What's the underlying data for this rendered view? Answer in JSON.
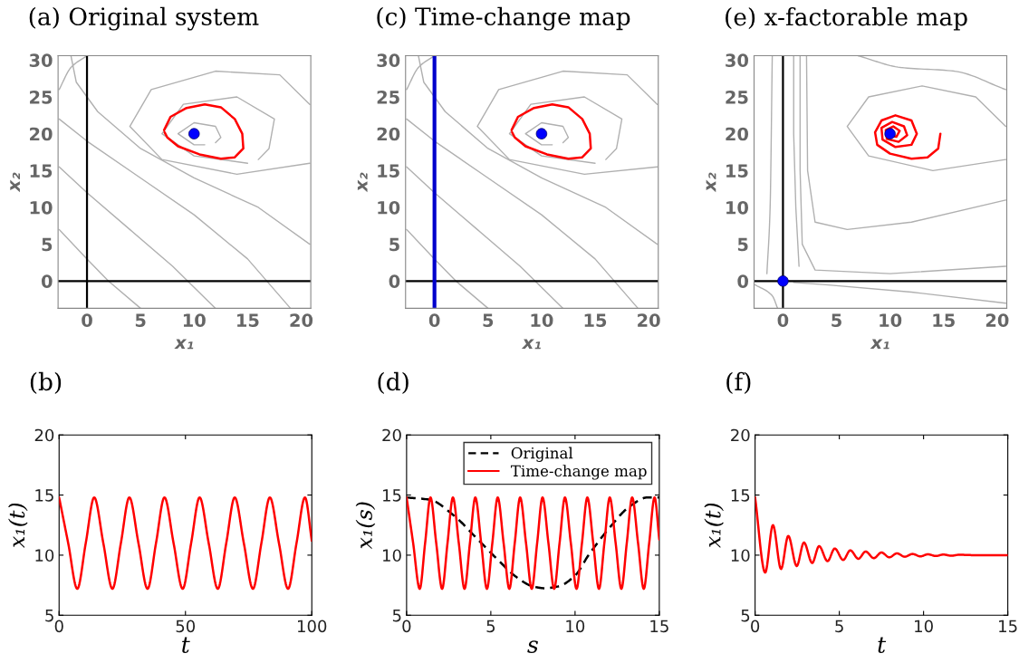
{
  "chart_data": [
    {
      "type": "line",
      "title": "(a) Original system",
      "xlabel": "x₁",
      "ylabel": "x₂",
      "xlim": [
        -2.7,
        20.9
      ],
      "ylim": [
        -3.7,
        30.6
      ],
      "xticks": [
        0,
        5,
        10,
        15,
        20
      ],
      "yticks": [
        0,
        5,
        10,
        15,
        20,
        25,
        30
      ],
      "ref_lines": [
        {
          "axis": "x",
          "value": 0,
          "color": "#000000"
        },
        {
          "axis": "y",
          "value": 0,
          "color": "#000000"
        }
      ],
      "series": [
        {
          "color": "#b0b0b0",
          "x": [
            5,
            2,
            0,
            -2.6
          ],
          "values": [
            -3.7,
            0,
            3,
            7
          ]
        },
        {
          "color": "#b0b0b0",
          "x": [
            12,
            8,
            4,
            0,
            -2.6
          ],
          "values": [
            -3.7,
            2,
            7,
            12,
            15.5
          ]
        },
        {
          "color": "#b0b0b0",
          "x": [
            19,
            15,
            10,
            5,
            0,
            -2.6
          ],
          "values": [
            -3.7,
            3,
            9,
            14,
            19,
            22
          ]
        },
        {
          "color": "#b0b0b0",
          "x": [
            20.8,
            16,
            10,
            5,
            1,
            -1,
            -1.5
          ],
          "values": [
            5,
            10,
            14,
            18,
            23,
            27,
            30.6
          ]
        },
        {
          "color": "#b0b0b0",
          "x": [
            -2.6,
            -1.5,
            0
          ],
          "values": [
            26,
            29,
            30.6
          ]
        },
        {
          "color": "#b0b0b0",
          "x": [
            20.8,
            14,
            7,
            4,
            6,
            12,
            18,
            20.8
          ],
          "values": [
            16,
            14.5,
            16.5,
            21,
            26,
            28.5,
            28,
            24
          ]
        },
        {
          "color": "#b0b0b0",
          "x": [
            15,
            10,
            7,
            9,
            14,
            17.5,
            17,
            16
          ],
          "values": [
            16,
            17,
            20,
            24,
            25,
            22,
            18,
            16.5
          ]
        },
        {
          "color": "#b0b0b0",
          "x": [
            11,
            10,
            8.5,
            10,
            12,
            12.5,
            12
          ],
          "values": [
            18.5,
            18.5,
            20,
            21.5,
            21,
            19.5,
            18.8
          ]
        },
        {
          "color": "#ff0000",
          "x": [
            7.2,
            7.8,
            9.3,
            11,
            12.5,
            13.8,
            14.5,
            14.6,
            13.8,
            12.5,
            10.5,
            8.5,
            7.5,
            7.25
          ],
          "values": [
            20.5,
            22.3,
            23.5,
            24,
            23.6,
            22,
            20,
            18,
            16.8,
            16.6,
            17.2,
            18.3,
            19.5,
            20.2
          ]
        },
        {
          "type": "scatter",
          "color": "#0000ff",
          "marker": "circle",
          "x": [
            10
          ],
          "values": [
            20
          ]
        }
      ]
    },
    {
      "type": "line",
      "title": "(c) Time-change map",
      "xlabel": "x₁",
      "ylabel": "x₂",
      "xlim": [
        -2.7,
        20.9
      ],
      "ylim": [
        -3.7,
        30.6
      ],
      "xticks": [
        0,
        5,
        10,
        15,
        20
      ],
      "yticks": [
        0,
        5,
        10,
        15,
        20,
        25,
        30
      ],
      "ref_lines": [
        {
          "axis": "y",
          "value": 0,
          "color": "#000000"
        },
        {
          "axis": "x",
          "value": 0,
          "color": "#0000cc"
        }
      ],
      "series": [
        {
          "color": "#b0b0b0",
          "x": [
            5,
            2,
            0,
            -2.6
          ],
          "values": [
            -3.7,
            0,
            3,
            7
          ]
        },
        {
          "color": "#b0b0b0",
          "x": [
            12,
            8,
            4,
            0,
            -2.6
          ],
          "values": [
            -3.7,
            2,
            7,
            12,
            15.5
          ]
        },
        {
          "color": "#b0b0b0",
          "x": [
            19,
            15,
            10,
            5,
            0,
            -2.6
          ],
          "values": [
            -3.7,
            3,
            9,
            14,
            19,
            22
          ]
        },
        {
          "color": "#b0b0b0",
          "x": [
            20.8,
            16,
            10,
            5,
            1,
            -1,
            -1.5
          ],
          "values": [
            5,
            10,
            14,
            18,
            23,
            27,
            30.6
          ]
        },
        {
          "color": "#b0b0b0",
          "x": [
            -2.6,
            -1.5,
            0
          ],
          "values": [
            26,
            29,
            30.6
          ]
        },
        {
          "color": "#b0b0b0",
          "x": [
            20.8,
            14,
            7,
            4,
            6,
            12,
            18,
            20.8
          ],
          "values": [
            15.5,
            14.5,
            16.5,
            21,
            26,
            28.5,
            28,
            24
          ]
        },
        {
          "color": "#b0b0b0",
          "x": [
            15,
            10,
            7,
            9,
            14,
            17.5,
            17,
            16
          ],
          "values": [
            16,
            17,
            20,
            24,
            25,
            22,
            18,
            16.5
          ]
        },
        {
          "color": "#b0b0b0",
          "x": [
            11,
            10,
            8.5,
            10,
            12,
            12.5,
            12
          ],
          "values": [
            18.5,
            18.5,
            20,
            21.5,
            21,
            19.5,
            18.8
          ]
        },
        {
          "color": "#ff0000",
          "x": [
            7.2,
            7.8,
            9.3,
            11,
            12.5,
            13.8,
            14.5,
            14.6,
            13.8,
            12.5,
            10.5,
            8.5,
            7.5,
            7.25
          ],
          "values": [
            20.5,
            22.3,
            23.5,
            24,
            23.6,
            22,
            20,
            18,
            16.8,
            16.6,
            17.2,
            18.3,
            19.5,
            20.2
          ]
        },
        {
          "type": "scatter",
          "color": "#0000ff",
          "marker": "circle",
          "x": [
            10
          ],
          "values": [
            20
          ]
        }
      ]
    },
    {
      "type": "line",
      "title": "(e) x-factorable map",
      "xlabel": "x₁",
      "ylabel": "x₂",
      "xlim": [
        -2.7,
        20.9
      ],
      "ylim": [
        -3.7,
        30.6
      ],
      "xticks": [
        0,
        5,
        10,
        15,
        20
      ],
      "yticks": [
        0,
        5,
        10,
        15,
        20,
        25,
        30
      ],
      "ref_lines": [
        {
          "axis": "x",
          "value": 0,
          "color": "#000000"
        },
        {
          "axis": "y",
          "value": 0,
          "color": "#000000"
        }
      ],
      "series": [
        {
          "color": "#b0b0b0",
          "x": [
            1.5,
            1.2,
            1,
            1
          ],
          "values": [
            2,
            10,
            20,
            30.6
          ]
        },
        {
          "color": "#b0b0b0",
          "x": [
            -1.5,
            -1.2,
            -1
          ],
          "values": [
            1,
            10,
            30.6
          ]
        },
        {
          "color": "#b0b0b0",
          "x": [
            20.8,
            10,
            3,
            1.8,
            1.6,
            1.6
          ],
          "values": [
            2,
            1,
            1.5,
            5,
            15,
            30.6
          ]
        },
        {
          "color": "#b0b0b0",
          "x": [
            20.8,
            12,
            4,
            1
          ],
          "values": [
            -3,
            -1.5,
            -0.5,
            -0.2
          ]
        },
        {
          "color": "#b0b0b0",
          "x": [
            -2.6,
            -1,
            -0.5
          ],
          "values": [
            -0.5,
            -2,
            -3.7
          ]
        },
        {
          "color": "#b0b0b0",
          "x": [
            20.8,
            12,
            6,
            3,
            2.3,
            2.2
          ],
          "values": [
            11,
            8,
            7,
            8,
            15,
            30.6
          ]
        },
        {
          "color": "#b0b0b0",
          "x": [
            20.8,
            14,
            8,
            6,
            8,
            13,
            18,
            20.8
          ],
          "values": [
            16.5,
            15,
            17,
            21,
            25,
            26.5,
            25,
            21
          ]
        },
        {
          "color": "#b0b0b0",
          "x": [
            7,
            11,
            16,
            20.8
          ],
          "values": [
            30.6,
            29,
            28.5,
            26
          ]
        },
        {
          "color": "#ff0000",
          "x": [
            14.7,
            14.5,
            13.5,
            12,
            10,
            8.8,
            8.6,
            9.2,
            10.5,
            12,
            12.5,
            12,
            10.5,
            9.3,
            9.2,
            10.2,
            11.3,
            11.6,
            10.8,
            9.7,
            9.6,
            10.3,
            10.9,
            10.6,
            10,
            10
          ],
          "values": [
            20,
            18,
            16.8,
            16.6,
            17.3,
            18.5,
            20.2,
            21.8,
            22.5,
            21.8,
            20,
            18.5,
            18.2,
            19.2,
            20.8,
            21.6,
            21,
            19.8,
            18.9,
            19.3,
            20.5,
            21,
            20.4,
            19.6,
            19.7,
            20
          ]
        },
        {
          "type": "scatter",
          "color": "#0000ff",
          "marker": "circle",
          "x": [
            10,
            0
          ],
          "values": [
            20,
            0
          ]
        }
      ]
    },
    {
      "type": "line",
      "title": "(b)",
      "xlabel": "t",
      "ylabel": "x₁(t)",
      "xlim": [
        0,
        100
      ],
      "ylim": [
        5,
        20
      ],
      "xticks": [
        0,
        50,
        100
      ],
      "yticks": [
        5,
        10,
        15,
        20
      ],
      "series": [
        {
          "color": "#ff0000",
          "x": [
            0,
            3.6,
            7.2,
            10.55,
            13.9,
            17.5,
            21.1,
            24.45,
            27.8,
            31.4,
            35,
            38.35,
            41.7,
            45.3,
            48.9,
            52.25,
            55.6,
            59.2,
            62.8,
            66.15,
            69.5,
            73.1,
            76.7,
            80.05,
            83.4,
            87,
            90.6,
            93.95,
            97.3,
            100
          ],
          "values": [
            14.8,
            11,
            7.2,
            11,
            14.8,
            11,
            7.2,
            11,
            14.8,
            11,
            7.2,
            11,
            14.8,
            11,
            7.2,
            11,
            14.8,
            11,
            7.2,
            11,
            14.8,
            11,
            7.2,
            11,
            14.8,
            11,
            7.2,
            11,
            14.8,
            11.2
          ]
        }
      ]
    },
    {
      "type": "line",
      "title": "(d)",
      "xlabel": "s",
      "ylabel": "x₁(s)",
      "xlim": [
        0,
        15
      ],
      "ylim": [
        5,
        20
      ],
      "xticks": [
        0,
        5,
        10,
        15
      ],
      "yticks": [
        5,
        10,
        15,
        20
      ],
      "legend": "top right",
      "series": [
        {
          "name": "Original",
          "color": "#000000",
          "line_style": "dashed",
          "x": [
            0,
            1.4,
            2.8,
            4.3,
            5.5,
            6.5,
            7.5,
            8.2,
            9,
            10,
            10.8,
            12,
            13.2,
            14.3,
            15
          ],
          "values": [
            14.8,
            14.6,
            13.3,
            11.2,
            9.5,
            8.2,
            7.4,
            7.25,
            7.4,
            8.3,
            10,
            12.2,
            14,
            14.8,
            14.8
          ]
        },
        {
          "name": "Time-change map",
          "color": "#ff0000",
          "x": [
            0,
            0.39,
            0.78,
            1.1,
            1.42,
            1.76,
            2.11,
            2.43,
            2.75,
            3.1,
            3.44,
            3.76,
            4.08,
            4.43,
            4.77,
            5.09,
            5.41,
            5.76,
            6.1,
            6.42,
            6.74,
            7.09,
            7.43,
            7.75,
            8.07,
            8.42,
            8.76,
            9.08,
            9.4,
            9.75,
            10.09,
            10.41,
            10.73,
            11.08,
            11.42,
            11.74,
            12.06,
            12.41,
            12.75,
            13.07,
            13.39,
            13.74,
            14.08,
            14.4,
            14.72,
            15
          ],
          "values": [
            14.8,
            11,
            7.2,
            11,
            14.8,
            11,
            7.2,
            11,
            14.8,
            11,
            7.2,
            11,
            14.8,
            11,
            7.2,
            11,
            14.8,
            11,
            7.2,
            11,
            14.8,
            11,
            7.2,
            11,
            14.8,
            11,
            7.2,
            11,
            14.8,
            11,
            7.2,
            11,
            14.8,
            11,
            7.2,
            11,
            14.8,
            11,
            7.2,
            11,
            14.8,
            11,
            7.2,
            11,
            14.8,
            11.3
          ]
        }
      ]
    },
    {
      "type": "line",
      "title": "(f)",
      "xlabel": "t",
      "ylabel": "x₁(t)",
      "xlim": [
        0,
        15
      ],
      "ylim": [
        5,
        20
      ],
      "xticks": [
        0,
        5,
        10,
        15
      ],
      "yticks": [
        5,
        10,
        15,
        20
      ],
      "series": [
        {
          "color": "#ff0000",
          "x": [
            0,
            0.6,
            1.06,
            1.54,
            1.97,
            2.47,
            2.9,
            3.39,
            3.8,
            4.3,
            4.73,
            5.23,
            5.65,
            6.13,
            6.56,
            7.05,
            7.5,
            7.97,
            8.42,
            8.89,
            9.34,
            9.81,
            10.26,
            10.73,
            11.18,
            11.65,
            12.1,
            13,
            15
          ],
          "values": [
            14.8,
            8.55,
            12.5,
            8.85,
            11.6,
            9.1,
            11.05,
            9.35,
            10.75,
            9.5,
            10.55,
            9.6,
            10.4,
            9.7,
            10.3,
            9.75,
            10.22,
            9.82,
            10.15,
            9.87,
            10.1,
            9.9,
            10.07,
            9.93,
            10.05,
            9.95,
            10.03,
            10,
            10
          ]
        }
      ]
    }
  ]
}
